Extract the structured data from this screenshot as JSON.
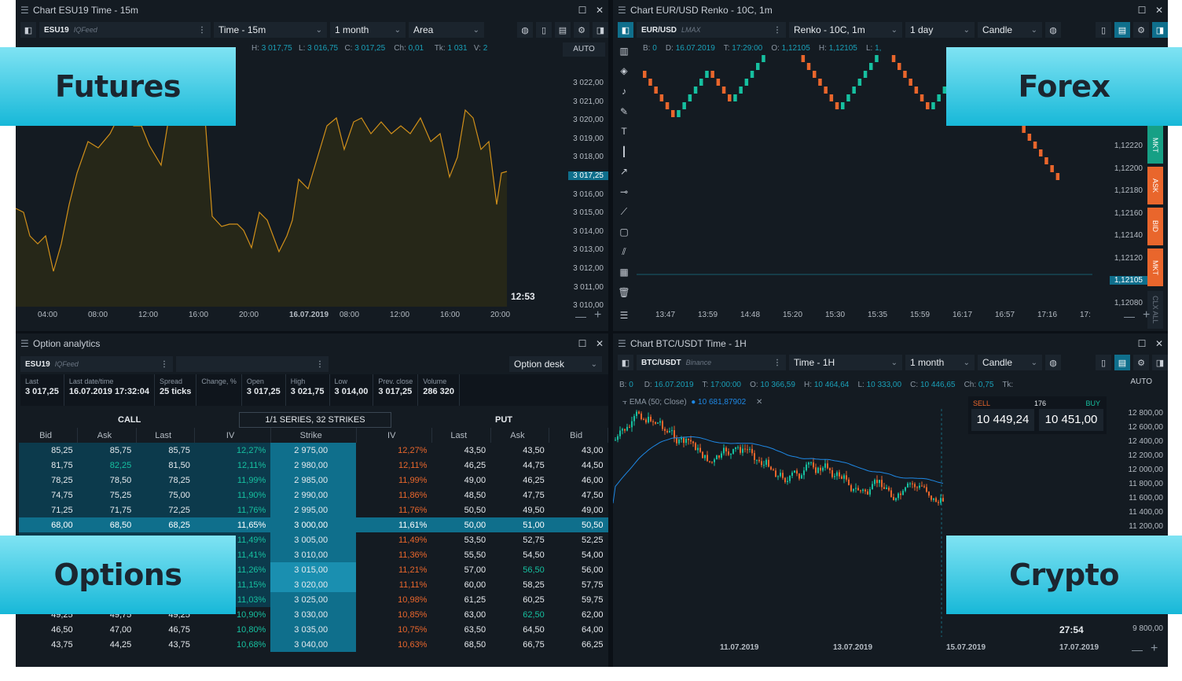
{
  "banners": {
    "futures": "Futures",
    "forex": "Forex",
    "options": "Options",
    "crypto": "Crypto"
  },
  "futures": {
    "title": "Chart ESU19 Time - 15m",
    "symbol": "ESU19",
    "feed": "IQFeed",
    "timeframe": "Time - 15m",
    "period": "1 month",
    "chart_type": "Area",
    "ohlc": {
      "h": "3 017,75",
      "l": "3 016,75",
      "c": "3 017,25",
      "ch": "0,01",
      "tk": "1 031",
      "v": "2"
    },
    "auto": "AUTO",
    "prices": [
      "3 022,00",
      "3 021,00",
      "3 020,00",
      "3 019,00",
      "3 018,00",
      "3 017,25",
      "3 016,00",
      "3 015,00",
      "3 014,00",
      "3 013,00",
      "3 012,00",
      "3 011,00",
      "3 010,00"
    ],
    "times": [
      "04:00",
      "08:00",
      "12:00",
      "16:00",
      "20:00",
      "16.07.2019",
      "08:00",
      "12:00",
      "16:00",
      "20:00"
    ],
    "countdown": "12:53"
  },
  "forex": {
    "title": "Chart EUR/USD Renko - 10C, 1m",
    "symbol": "EUR/USD",
    "feed": "LMAX",
    "timeframe": "Renko - 10C, 1m",
    "period": "1 day",
    "chart_type": "Candle",
    "ohlc": {
      "b": "0",
      "d": "16.07.2019",
      "t": "17:29:00",
      "o": "1,12105",
      "h": "1,12105",
      "l": "1,"
    },
    "prices": [
      "1,12220",
      "1,12200",
      "1,12180",
      "1,12160",
      "1,12140",
      "1,12120",
      "1,12105",
      "1,12080"
    ],
    "times": [
      "13:47",
      "13:59",
      "14:48",
      "15:20",
      "15:30",
      "15:35",
      "15:59",
      "16:17",
      "16:57",
      "17:16",
      "17:"
    ],
    "side_buttons": [
      "MKT",
      "ASK",
      "BID",
      "MKT",
      "CLX ALL"
    ]
  },
  "options": {
    "title": "Option analytics",
    "symbol": "ESU19",
    "feed": "IQFeed",
    "mode": "Option desk",
    "stats": [
      {
        "label": "Last",
        "value": "3 017,25"
      },
      {
        "label": "Last date/time",
        "value": "16.07.2019 17:32:04"
      },
      {
        "label": "Spread",
        "value": "25 ticks"
      },
      {
        "label": "Change, %",
        "value": ""
      },
      {
        "label": "Open",
        "value": "3 017,25"
      },
      {
        "label": "High",
        "value": "3 021,75"
      },
      {
        "label": "Low",
        "value": "3 014,00"
      },
      {
        "label": "Prev. close",
        "value": "3 017,25"
      },
      {
        "label": "Volume",
        "value": "286 320"
      }
    ],
    "call_label": "CALL",
    "put_label": "PUT",
    "series_label": "1/1 SERIES, 32 STRIKES",
    "headers": [
      "Bid",
      "Ask",
      "Last",
      "IV",
      "Strike",
      "IV",
      "Last",
      "Ask",
      "Bid"
    ],
    "rows": [
      [
        "85,25",
        "85,75",
        "85,75",
        "12,27%",
        "2 975,00",
        "12,27%",
        "43,50",
        "43,50",
        "43,00"
      ],
      [
        "81,75",
        "82,25",
        "81,50",
        "12,11%",
        "2 980,00",
        "12,11%",
        "46,25",
        "44,75",
        "44,50"
      ],
      [
        "78,25",
        "78,50",
        "78,25",
        "11,99%",
        "2 985,00",
        "11,99%",
        "49,00",
        "46,25",
        "46,00"
      ],
      [
        "74,75",
        "75,25",
        "75,00",
        "11,90%",
        "2 990,00",
        "11,86%",
        "48,50",
        "47,75",
        "47,50"
      ],
      [
        "71,25",
        "71,75",
        "72,25",
        "11,76%",
        "2 995,00",
        "11,76%",
        "50,50",
        "49,50",
        "49,00"
      ],
      [
        "68,00",
        "68,50",
        "68,25",
        "11,65%",
        "3 000,00",
        "11,61%",
        "50,00",
        "51,00",
        "50,50"
      ],
      [
        "",
        "",
        "",
        "11,49%",
        "3 005,00",
        "11,49%",
        "53,50",
        "52,75",
        "52,25"
      ],
      [
        "",
        "",
        "",
        "11,41%",
        "3 010,00",
        "11,36%",
        "55,50",
        "54,50",
        "54,00"
      ],
      [
        "",
        "",
        "",
        "11,26%",
        "3 015,00",
        "11,21%",
        "57,00",
        "56,50",
        "56,00"
      ],
      [
        "",
        "",
        "",
        "11,15%",
        "3 020,00",
        "11,11%",
        "60,00",
        "58,25",
        "57,75"
      ],
      [
        "",
        "",
        "",
        "11,03%",
        "3 025,00",
        "10,98%",
        "61,25",
        "60,25",
        "59,75"
      ],
      [
        "49,25",
        "49,75",
        "49,25",
        "10,90%",
        "3 030,00",
        "10,85%",
        "63,00",
        "62,50",
        "62,00"
      ],
      [
        "46,50",
        "47,00",
        "46,75",
        "10,80%",
        "3 035,00",
        "10,75%",
        "63,50",
        "64,50",
        "64,00"
      ],
      [
        "43,75",
        "44,25",
        "43,75",
        "10,68%",
        "3 040,00",
        "10,63%",
        "68,50",
        "66,75",
        "66,25"
      ]
    ]
  },
  "crypto": {
    "title": "Chart BTC/USDT Time - 1H",
    "symbol": "BTC/USDT",
    "feed": "Binance",
    "timeframe": "Time - 1H",
    "period": "1 month",
    "chart_type": "Candle",
    "ohlc": {
      "b": "0",
      "d": "16.07.2019",
      "t": "17:00:00",
      "o": "10 366,59",
      "h": "10 464,64",
      "l": "10 333,00",
      "c": "10 446,65",
      "ch": "0,75",
      "tk": ""
    },
    "indicator": "EMA (50; Close)",
    "indicator_value": "10 681,87902",
    "sell_label": "SELL",
    "buy_label": "BUY",
    "qty": "176",
    "sell_price": "10 449,24",
    "buy_price": "10 451,00",
    "auto": "AUTO",
    "prices": [
      "12 800,00",
      "12 600,00",
      "12 400,00",
      "12 200,00",
      "12 000,00",
      "11 800,00",
      "11 600,00",
      "11 400,00",
      "11 200,00",
      "9 800,00"
    ],
    "times": [
      "11.07.2019",
      "13.07.2019",
      "15.07.2019",
      "17.07.2019"
    ],
    "countdown": "27:54"
  }
}
